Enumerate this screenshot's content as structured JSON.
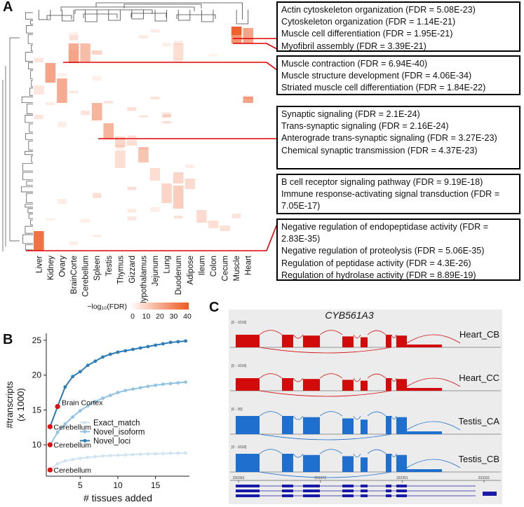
{
  "panels": {
    "a": "A",
    "b": "B",
    "c": "C"
  },
  "heatmap": {
    "tissues": [
      "Liver",
      "Kidney",
      "Ovary",
      "BrainCorte",
      "Cerebellum",
      "Spleen",
      "Testis",
      "Thymus",
      "Gizzard",
      "Hypothalamus",
      "Jejunum",
      "Lung",
      "Duodenum",
      "Adipose",
      "Ileum",
      "Colon",
      "Cecum",
      "Muscle",
      "Heart"
    ],
    "legend_label": "−log₁₀(FDR)",
    "legend_ticks": [
      "0",
      "10",
      "20",
      "30",
      "40"
    ],
    "colors": {
      "low": "#ffffff",
      "high": "#ee5a24",
      "connector": "#e00000"
    }
  },
  "go_boxes": [
    {
      "terms": [
        "Actin cytoskeleton organization (FDR = 5.08E-23)",
        "Cytoskeleton organization (FDR = 1.14E-21)",
        "Muscle cell differentiation (FDR = 1.95E-21)",
        "Myofibril assembly (FDR = 3.39E-21)"
      ]
    },
    {
      "terms": [
        "Muscle contraction (FDR = 6.94E-40)",
        "Muscle structure development (FDR = 4.06E-34)",
        "Striated muscle cell differentiation  (FDR = 1.84E-22)"
      ]
    },
    {
      "terms": [
        "Synaptic signaling (FDR = 2.1E-24)",
        "Trans-synaptic signaling (FDR = 2.16E-24)",
        "Anterograde trans-synaptic signaling (FDR = 3.27E-23)",
        "Chemical synaptic transmission (FDR = 4.37E-23)"
      ]
    },
    {
      "terms": [
        "B cell receptor signaling pathway (FDR = 9.19E-18)",
        "Immune response-activating signal transduction (FDR = 7.05E-17)"
      ]
    },
    {
      "terms": [
        "Negative regulation of endopeptidase activity (FDR = 2.83E-35)",
        "Negative regulation of proteolysis (FDR = 5.06E-35)",
        "Regulation of peptidase activity (FDR = 4.3E-26)",
        "Regulation of hydrolase activity (FDR = 8.89E-19)"
      ]
    }
  ],
  "chart_data": {
    "type": "line",
    "title": "",
    "xlabel": "# tissues added",
    "ylabel": "#transcripts (x 1000)",
    "xlim": [
      0.5,
      19.5
    ],
    "ylim": [
      5.5,
      26
    ],
    "xticks": [
      5,
      10,
      15
    ],
    "yticks": [
      10,
      15,
      20,
      25
    ],
    "x": [
      1,
      2,
      3,
      4,
      5,
      6,
      7,
      8,
      9,
      10,
      11,
      12,
      13,
      14,
      15,
      16,
      17,
      18,
      19
    ],
    "series": [
      {
        "name": "Exact_match",
        "color": "#cfe4f3",
        "values": [
          6.4,
          7.3,
          7.7,
          7.9,
          8.05,
          8.2,
          8.3,
          8.4,
          8.45,
          8.5,
          8.55,
          8.6,
          8.65,
          8.7,
          8.72,
          8.75,
          8.78,
          8.8,
          8.82
        ]
      },
      {
        "name": "Novel_isoform",
        "color": "#93c3e3",
        "values": [
          10.0,
          11.8,
          13.0,
          14.0,
          14.9,
          15.6,
          16.2,
          16.7,
          17.1,
          17.5,
          17.8,
          18.0,
          18.2,
          18.4,
          18.55,
          18.7,
          18.8,
          18.9,
          19.0
        ]
      },
      {
        "name": "Novel_loci",
        "color": "#2a7bb8",
        "values": [
          12.6,
          15.5,
          18.3,
          19.8,
          20.5,
          21.4,
          22.0,
          22.6,
          23.0,
          23.3,
          23.5,
          23.7,
          23.9,
          24.1,
          24.3,
          24.5,
          24.7,
          24.8,
          24.9
        ]
      }
    ],
    "annotations": [
      {
        "text": "Brain Cortex",
        "x": 2,
        "y": 15.5
      },
      {
        "text": "Cerebellum",
        "x": 1,
        "y": 12.6
      },
      {
        "text": "Cerebellum",
        "x": 1,
        "y": 10.0
      },
      {
        "text": "Cerebellum",
        "x": 1,
        "y": 6.4
      }
    ],
    "highlight_color": "#e01010"
  },
  "sashimi": {
    "gene": "CYB561A3",
    "tracks": [
      {
        "name": "Heart_CB",
        "scale": "[0 - 1018]",
        "color": "#d10a0a"
      },
      {
        "name": "Heart_CC",
        "scale": "[0 - 1018]",
        "color": "#d10a0a"
      },
      {
        "name": "Testis_CA",
        "scale": "[0 - 30]",
        "color": "#1f6fce"
      },
      {
        "name": "Testis_CB",
        "scale": "[0 - 1018]",
        "color": "#1f6fce"
      }
    ],
    "coords": [
      "330393",
      "331372",
      "332351",
      "333331"
    ],
    "track_color": "#1a1aa8"
  }
}
